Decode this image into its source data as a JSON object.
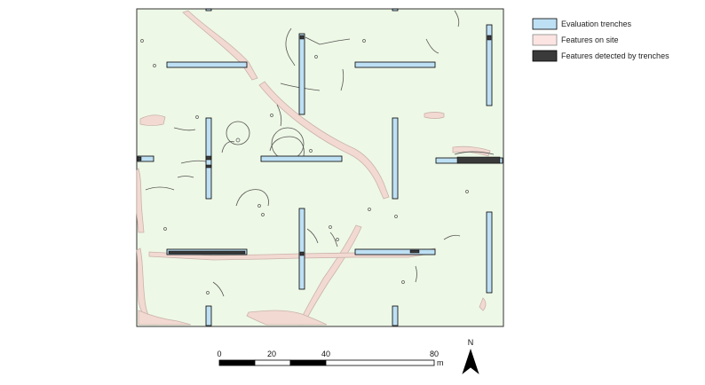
{
  "legend": {
    "items": [
      {
        "label": "Evaluation trenches",
        "fill": "#bee0f4",
        "stroke": "#000000"
      },
      {
        "label": "Features on site",
        "fill": "#fbe4e2",
        "stroke": "#888888"
      },
      {
        "label": "Features detected by trenches",
        "fill": "#3a3a3a",
        "stroke": "#000000"
      }
    ]
  },
  "map": {
    "background_color": "#eef8e6",
    "feature_fill": "#f2d9d2",
    "feature_stroke": "#c9b3aa",
    "outline_stroke": "#555555"
  },
  "scale_bar": {
    "labels": [
      "0",
      "20",
      "40",
      "80"
    ],
    "unit": "m"
  },
  "north_arrow": {
    "label": "N"
  }
}
